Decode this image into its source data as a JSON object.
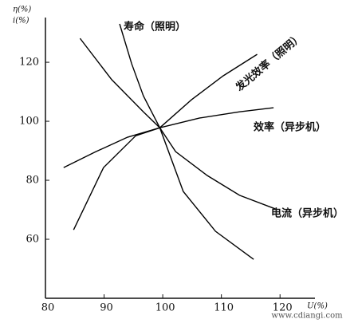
{
  "chart_data": {
    "type": "line",
    "y_label_lines": [
      "η(%)",
      "i(%)"
    ],
    "x_label": "U(%)",
    "watermark": "www.cdiangi.com",
    "xlim": [
      80,
      125
    ],
    "xticks": [
      80,
      90,
      100,
      110,
      120
    ],
    "ylim": [
      40,
      133
    ],
    "yticks": [
      60,
      80,
      100,
      120
    ],
    "series": [
      {
        "name": "寿命（照明）",
        "color": "#000000",
        "x": [
          92.65,
          94.7,
          96.7,
          99.5,
          103.5,
          109,
          115.5
        ],
        "values": [
          133,
          119.5,
          108.6,
          97.8,
          76.2,
          62.7,
          53.2
        ]
      },
      {
        "name": "发光效率（照明）",
        "color": "#000000",
        "x": [
          84.8,
          89.9,
          95.4,
          99.5,
          104.9,
          110.3,
          116.1
        ],
        "values": [
          63.2,
          84.3,
          95.1,
          97.8,
          107.3,
          115.4,
          122.7
        ]
      },
      {
        "name": "效率（异步机）",
        "color": "#000000",
        "x": [
          83.1,
          88.6,
          94,
          99.5,
          106.3,
          113.1,
          118.9
        ],
        "values": [
          84.3,
          89.7,
          94.6,
          97.8,
          101.1,
          103.2,
          104.6
        ]
      },
      {
        "name": "电流（异步机）",
        "color": "#000000",
        "x": [
          85.9,
          91.3,
          96.7,
          99.5,
          102.2,
          107.6,
          113.1,
          119.2
        ],
        "values": [
          128.1,
          114.1,
          103.2,
          97.8,
          89.7,
          81.6,
          74.9,
          70.3
        ]
      }
    ]
  }
}
